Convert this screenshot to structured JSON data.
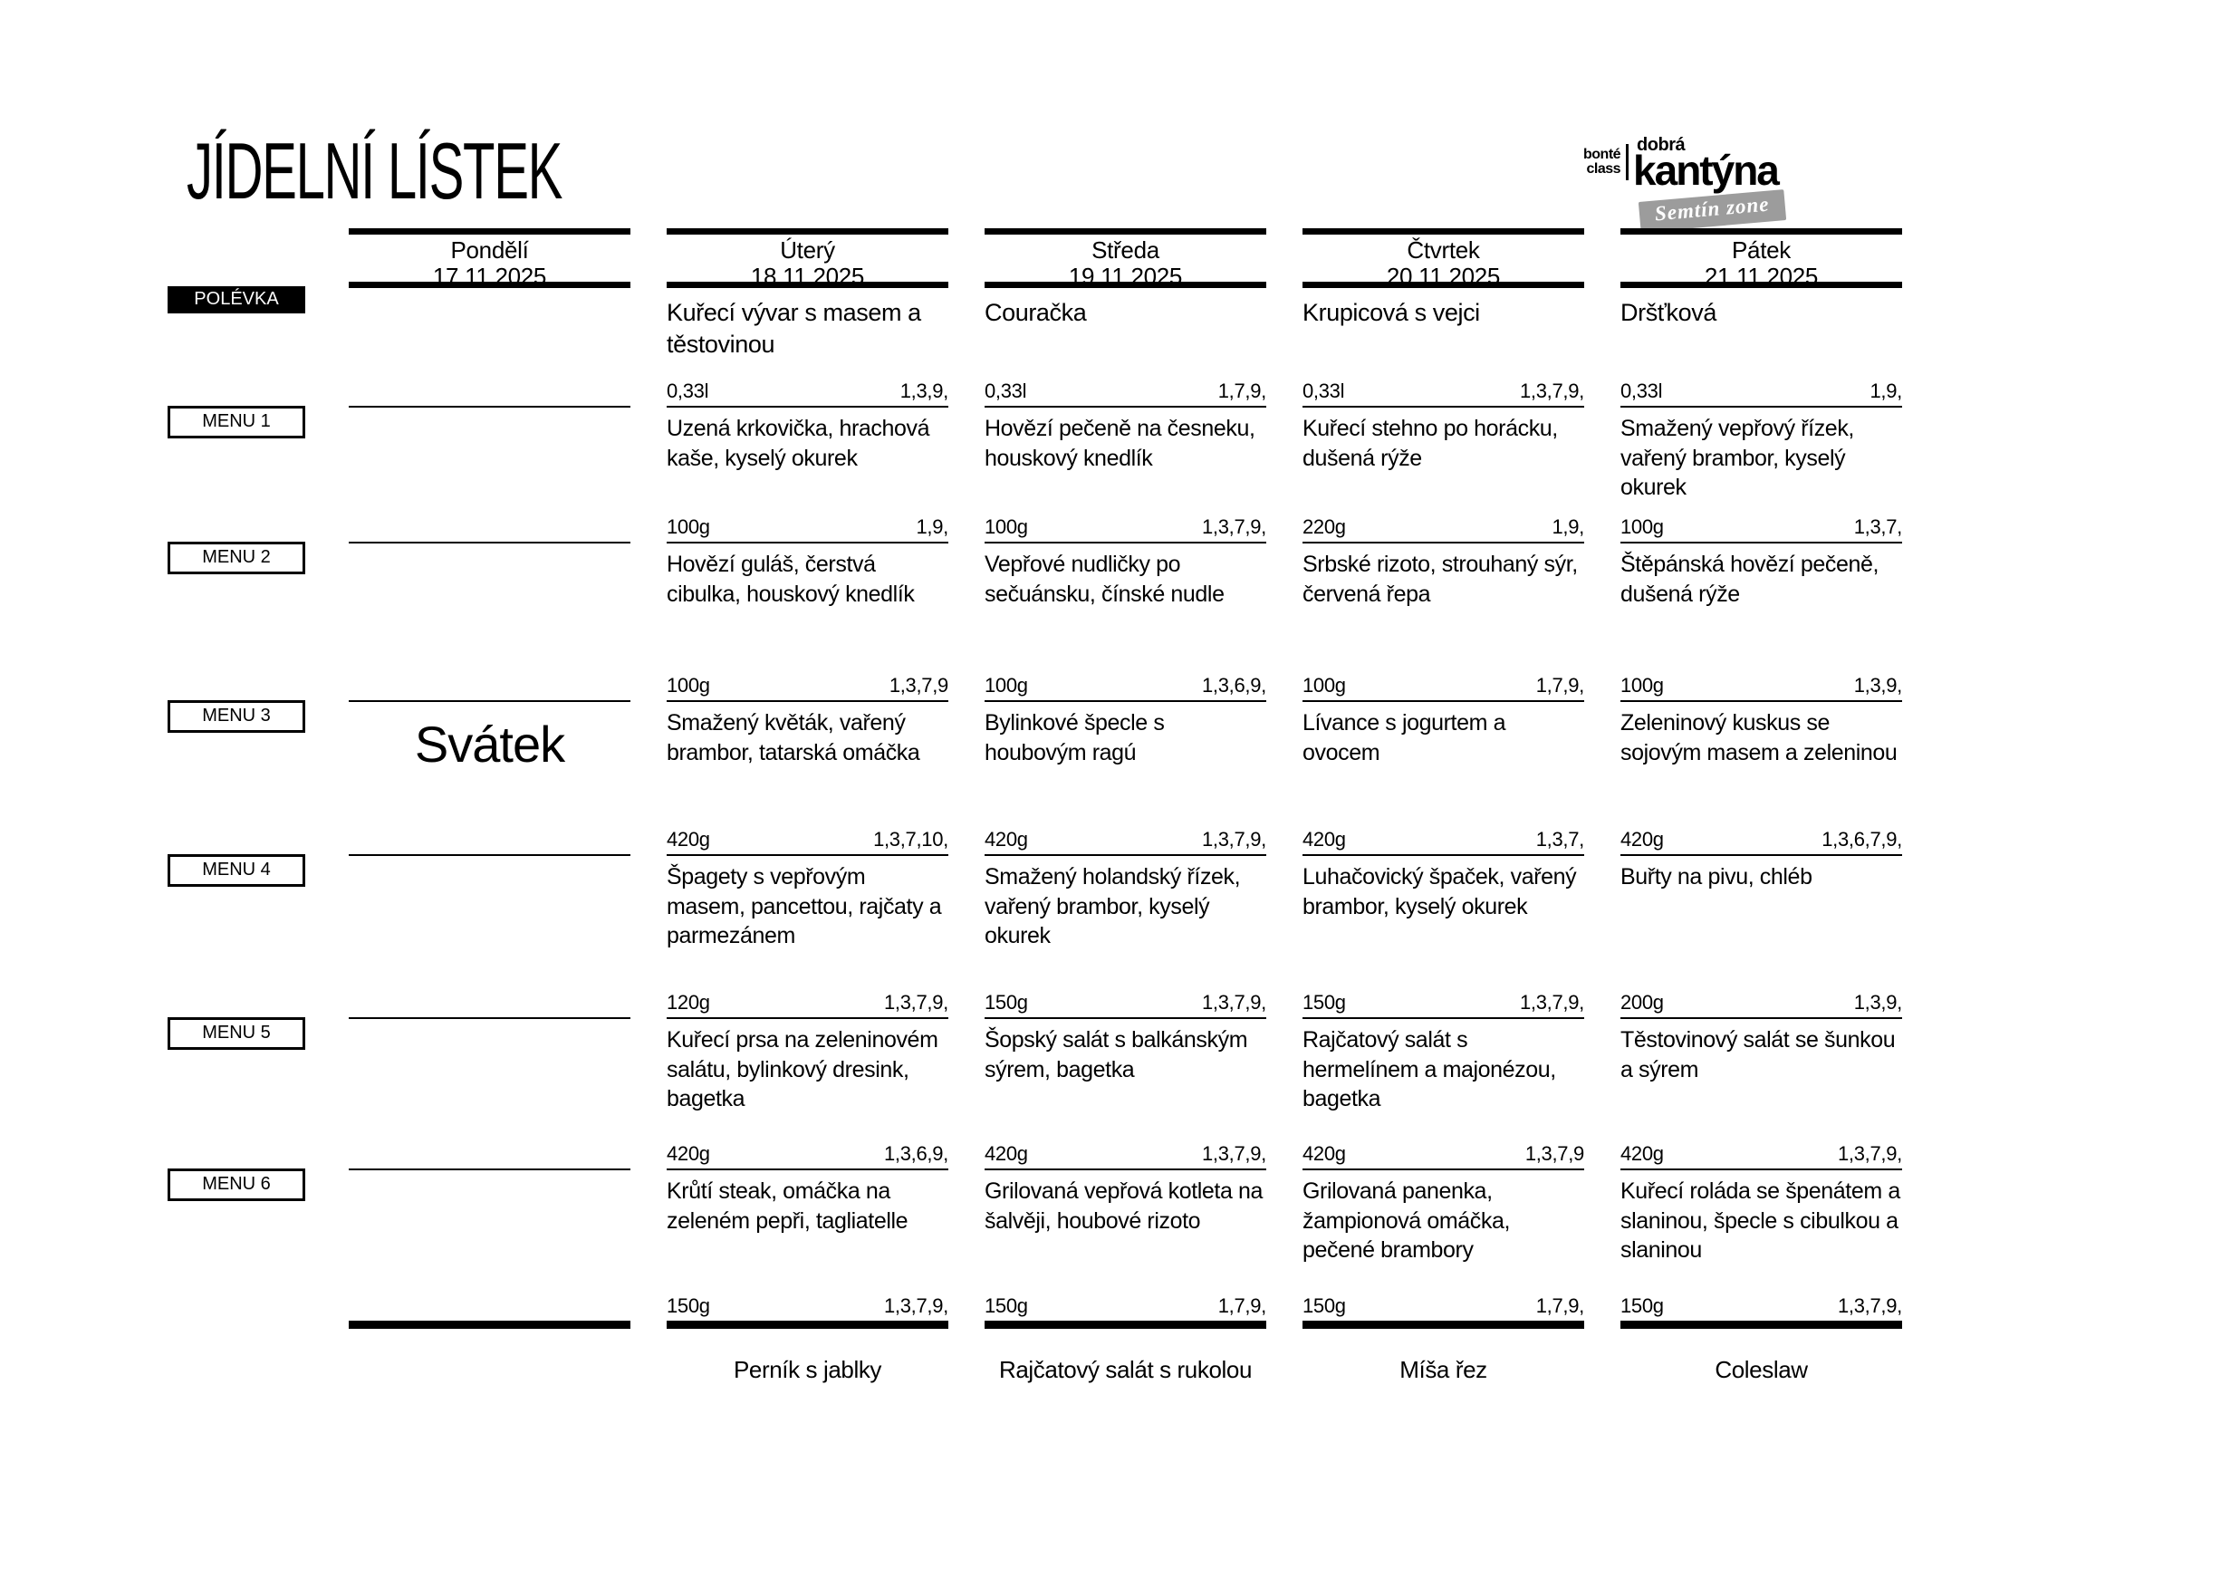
{
  "title": "JÍDELNÍ LÍSTEK",
  "logo": {
    "bonte_line1": "bonté",
    "bonte_line2": "class",
    "dobra": "dobrá",
    "kantyna": "kantýna",
    "zone_badge": "Semtín zone"
  },
  "row_labels": {
    "soup": "POLÉVKA",
    "menus": [
      "MENU 1",
      "MENU 2",
      "MENU 3",
      "MENU 4",
      "MENU 5",
      "MENU 6"
    ]
  },
  "days": [
    {
      "name": "Pondělí",
      "date": "17.11.2025",
      "holiday": "Svátek",
      "soup": null,
      "menus": [
        null,
        null,
        null,
        null,
        null,
        null
      ],
      "dessert": null
    },
    {
      "name": "Úterý",
      "date": "18.11.2025",
      "soup": {
        "text": "Kuřecí vývar s masem a těstovinou",
        "weight": "0,33l",
        "allergens": "1,3,9,"
      },
      "menus": [
        {
          "text": "Uzená krkovička, hrachová kaše, kyselý okurek",
          "weight": "100g",
          "allergens": "1,9,"
        },
        {
          "text": "Hovězí guláš, čerstvá cibulka, houskový knedlík",
          "weight": "100g",
          "allergens": "1,3,7,9"
        },
        {
          "text": "Smažený květák, vařený brambor, tatarská omáčka",
          "weight": "420g",
          "allergens": "1,3,7,10,"
        },
        {
          "text": "Špagety s vepřovým masem, pancettou, rajčaty a parmezánem",
          "weight": "120g",
          "allergens": "1,3,7,9,"
        },
        {
          "text": "Kuřecí prsa na zeleninovém salátu, bylinkový dresink, bagetka",
          "weight": "420g",
          "allergens": "1,3,6,9,"
        },
        {
          "text": "Krůtí steak, omáčka na zeleném pepři, tagliatelle",
          "weight": "150g",
          "allergens": "1,3,7,9,"
        }
      ],
      "dessert": "Perník s jablky"
    },
    {
      "name": "Středa",
      "date": "19.11.2025",
      "soup": {
        "text": "Couračka",
        "weight": "0,33l",
        "allergens": "1,7,9,"
      },
      "menus": [
        {
          "text": "Hovězí pečeně na česneku, houskový knedlík",
          "weight": "100g",
          "allergens": "1,3,7,9,"
        },
        {
          "text": "Vepřové nudličky po sečuánsku, čínské nudle",
          "weight": "100g",
          "allergens": "1,3,6,9,"
        },
        {
          "text": "Bylinkové špecle s houbovým ragú",
          "weight": "420g",
          "allergens": "1,3,7,9,"
        },
        {
          "text": "Smažený holandský řízek, vařený brambor, kyselý okurek",
          "weight": "150g",
          "allergens": "1,3,7,9,"
        },
        {
          "text": "Šopský salát s balkánským sýrem, bagetka",
          "weight": "420g",
          "allergens": "1,3,7,9,"
        },
        {
          "text": "Grilovaná vepřová kotleta na šalvěji, houbové rizoto",
          "weight": "150g",
          "allergens": "1,7,9,"
        }
      ],
      "dessert": "Rajčatový salát s rukolou"
    },
    {
      "name": "Čtvrtek",
      "date": "20.11.2025",
      "soup": {
        "text": "Krupicová s vejci",
        "weight": "0,33l",
        "allergens": "1,3,7,9,"
      },
      "menus": [
        {
          "text": "Kuřecí stehno po horácku, dušená rýže",
          "weight": "220g",
          "allergens": "1,9,"
        },
        {
          "text": "Srbské rizoto, strouhaný sýr, červená řepa",
          "weight": "100g",
          "allergens": "1,7,9,"
        },
        {
          "text": "Lívance s jogurtem a ovocem",
          "weight": "420g",
          "allergens": "1,3,7,"
        },
        {
          "text": "Luhačovický špaček, vařený brambor, kyselý okurek",
          "weight": "150g",
          "allergens": "1,3,7,9,"
        },
        {
          "text": "Rajčatový salát s hermelínem a majonézou, bagetka",
          "weight": "420g",
          "allergens": "1,3,7,9"
        },
        {
          "text": "Grilovaná panenka, žampionová omáčka, pečené brambory",
          "weight": "150g",
          "allergens": "1,7,9,"
        }
      ],
      "dessert": "Míša řez"
    },
    {
      "name": "Pátek",
      "date": "21.11.2025",
      "soup": {
        "text": "Dršťková",
        "weight": "0,33l",
        "allergens": "1,9,"
      },
      "menus": [
        {
          "text": "Smažený vepřový řízek, vařený brambor, kyselý okurek",
          "weight": "100g",
          "allergens": "1,3,7,"
        },
        {
          "text": "Štěpánská hovězí pečeně, dušená rýže",
          "weight": "100g",
          "allergens": "1,3,9,"
        },
        {
          "text": "Zeleninový kuskus se sojovým masem a zeleninou",
          "weight": "420g",
          "allergens": "1,3,6,7,9,"
        },
        {
          "text": "Buřty na pivu, chléb",
          "weight": "200g",
          "allergens": "1,3,9,"
        },
        {
          "text": "Těstovinový salát se šunkou a sýrem",
          "weight": "420g",
          "allergens": "1,3,7,9,"
        },
        {
          "text": "Kuřecí roláda se špenátem a slaninou, špecle s cibulkou a slaninou",
          "weight": "150g",
          "allergens": "1,3,7,9,"
        }
      ],
      "dessert": "Coleslaw"
    }
  ]
}
